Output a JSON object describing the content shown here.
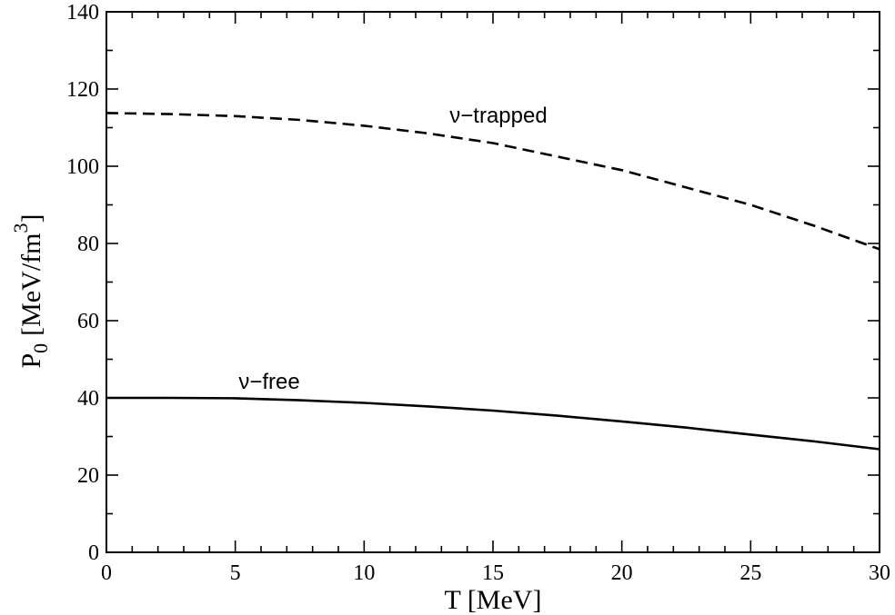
{
  "chart_data": {
    "type": "line",
    "title": "",
    "xlabel": "T  [MeV]",
    "ylabel": {
      "main": "P",
      "subscript": "0",
      "unit": "[MeV/fm",
      "superscript": "3",
      "close": "]"
    },
    "xlim": [
      0,
      30
    ],
    "ylim": [
      0,
      140
    ],
    "x_ticks": [
      0,
      5,
      10,
      15,
      20,
      25,
      30
    ],
    "y_ticks": [
      0,
      20,
      40,
      60,
      80,
      100,
      120,
      140
    ],
    "grid": false,
    "legend": "none",
    "series": [
      {
        "name": "ν−trapped",
        "line_style": "dashed",
        "color": "#000000",
        "x": [
          0,
          2.5,
          5,
          7.5,
          10,
          12.5,
          15,
          17.5,
          20,
          22.5,
          25,
          27.5,
          30
        ],
        "y": [
          113.8,
          113.5,
          113.0,
          112.0,
          110.5,
          108.5,
          106.0,
          102.5,
          99.0,
          94.5,
          90.0,
          84.5,
          78.5
        ]
      },
      {
        "name": "ν−free",
        "line_style": "solid",
        "color": "#000000",
        "x": [
          0,
          2.5,
          5,
          7.5,
          10,
          12.5,
          15,
          17.5,
          20,
          22.5,
          25,
          27.5,
          30
        ],
        "y": [
          40.0,
          40.0,
          39.9,
          39.4,
          38.7,
          37.8,
          36.7,
          35.4,
          33.9,
          32.3,
          30.5,
          28.7,
          26.7
        ]
      }
    ]
  }
}
